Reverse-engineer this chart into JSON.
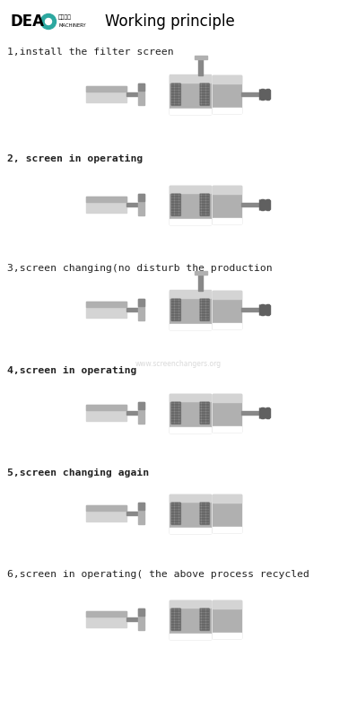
{
  "title": "Working principle",
  "logo_text": "DEA",
  "bg_color": "#ffffff",
  "steps": [
    {
      "label": "1,install the filter screen",
      "bold": false
    },
    {
      "label": "2, screen in operating",
      "bold": true
    },
    {
      "label": "3,screen changing(no disturb the production",
      "bold": false
    },
    {
      "label": "4,screen in operating",
      "bold": true
    },
    {
      "label": "5,screen changing again",
      "bold": true
    },
    {
      "label": "6,screen in operating( the above process recycled",
      "bold": false
    }
  ],
  "diagram_configs": [
    {
      "top_piston": true,
      "right_ext": true
    },
    {
      "top_piston": false,
      "right_ext": true
    },
    {
      "top_piston": true,
      "right_ext": true
    },
    {
      "top_piston": false,
      "right_ext": true
    },
    {
      "top_piston": false,
      "right_ext": false
    },
    {
      "top_piston": false,
      "right_ext": false
    }
  ],
  "colors": {
    "light_gray": "#d4d4d4",
    "mid_gray": "#b0b0b0",
    "dark_gray": "#888888",
    "very_dark": "#606060",
    "white": "#ffffff",
    "teal": "#2da8a0",
    "text_dark": "#222222"
  }
}
